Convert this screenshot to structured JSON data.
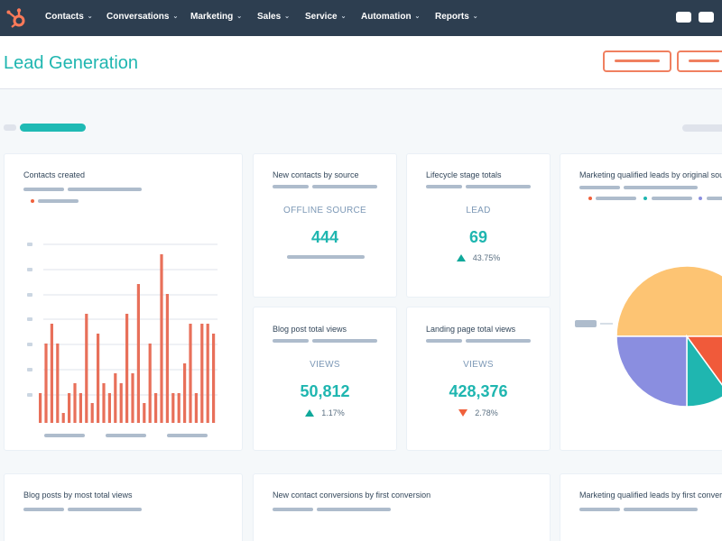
{
  "nav": {
    "items": [
      "Contacts",
      "Conversations",
      "Marketing",
      "Sales",
      "Service",
      "Automation",
      "Reports"
    ]
  },
  "header": {
    "title": "Lead Generation"
  },
  "cards": {
    "contacts_created": {
      "title": "Contacts created"
    },
    "new_contacts": {
      "title": "New contacts by source",
      "label": "OFFLINE SOURCE",
      "value": "444"
    },
    "lifecycle": {
      "title": "Lifecycle stage totals",
      "label": "LEAD",
      "value": "69",
      "change": "43.75%",
      "trend": "up"
    },
    "mql_origin": {
      "title": "Marketing qualified leads by original source"
    },
    "blog_views": {
      "title": "Blog post total views",
      "label": "VIEWS",
      "value": "50,812",
      "change": "1.17%",
      "trend": "up"
    },
    "landing_views": {
      "title": "Landing page total views",
      "label": "VIEWS",
      "value": "428,376",
      "change": "2.78%",
      "trend": "down"
    },
    "blog_posts": {
      "title": "Blog posts by most total views"
    },
    "conversions": {
      "title": "New contact conversions by first conversion"
    },
    "mql_first": {
      "title": "Marketing qualified leads by first conversion"
    }
  },
  "colors": {
    "nav_bg": "#2d3e50",
    "accent_teal": "#1fb6b0",
    "accent_orange": "#f08060",
    "bar": "#e8705a",
    "up": "#0fa89a",
    "down": "#f0613c"
  },
  "chart_data": [
    {
      "type": "bar",
      "title": "Contacts created",
      "values": [
        3,
        8,
        10,
        8,
        1,
        3,
        4,
        3,
        11,
        2,
        9,
        4,
        3,
        5,
        4,
        11,
        5,
        14,
        2,
        8,
        3,
        17,
        13,
        3,
        3,
        6,
        10,
        3,
        10,
        10,
        9
      ]
    },
    {
      "type": "pie",
      "title": "Marketing qualified leads by original source",
      "series": [
        {
          "values": [
            50,
            15,
            10,
            25
          ],
          "colors": [
            "#fdc473",
            "#f05a3a",
            "#1fb6b0",
            "#8a8ee0"
          ]
        }
      ]
    }
  ]
}
